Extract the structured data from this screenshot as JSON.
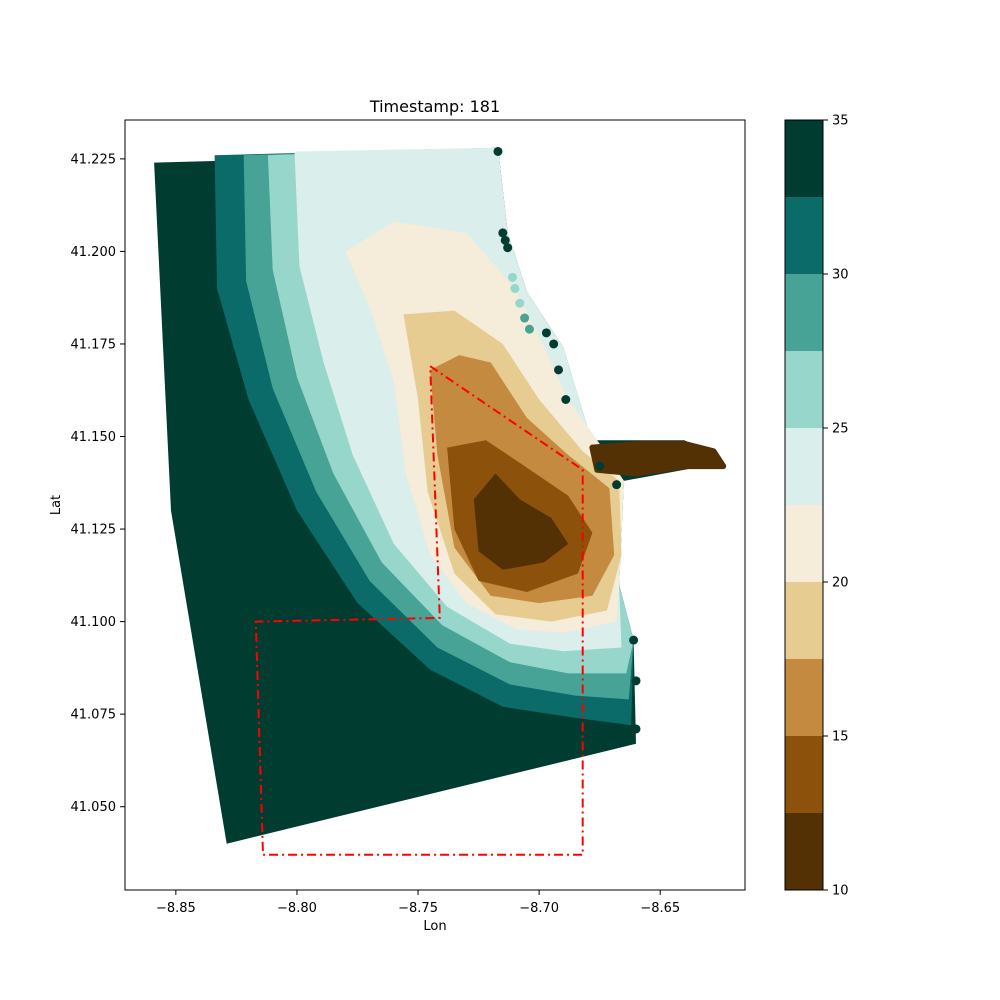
{
  "chart_data": {
    "type": "scatter",
    "title": "Timestamp: 181",
    "xlabel": "Lon",
    "ylabel": "Lat",
    "xlim": [
      -8.871,
      -8.615
    ],
    "ylim": [
      41.0275,
      41.2355
    ],
    "x_ticks": [
      -8.85,
      -8.8,
      -8.75,
      -8.7,
      -8.65
    ],
    "x_tick_labels": [
      "−8.85",
      "−8.80",
      "−8.75",
      "−8.70",
      "−8.65"
    ],
    "y_ticks": [
      41.05,
      41.075,
      41.1,
      41.125,
      41.15,
      41.175,
      41.2,
      41.225
    ],
    "y_tick_labels": [
      "41.050",
      "41.075",
      "41.100",
      "41.125",
      "41.150",
      "41.175",
      "41.200",
      "41.225"
    ],
    "grid": false,
    "colorbar": {
      "min": 10,
      "max": 35,
      "ticks": [
        10,
        15,
        20,
        25,
        30,
        35
      ],
      "tick_labels": [
        "10",
        "15",
        "20",
        "25",
        "30",
        "35"
      ],
      "levels": [
        10,
        12.5,
        15,
        17.5,
        20,
        22.5,
        25,
        27.5,
        30,
        32.5,
        35
      ],
      "colors": [
        "#543005",
        "#8c510a",
        "#c48a3f",
        "#e6cc90",
        "#f5ecda",
        "#daeeeb",
        "#97d6ca",
        "#46a396",
        "#0a6b68",
        "#003c30"
      ]
    },
    "domain_outline": [
      [
        -8.859,
        41.224
      ],
      [
        -8.747,
        41.226
      ],
      [
        -8.717,
        41.228
      ],
      [
        -8.713,
        41.205
      ],
      [
        -8.705,
        41.189
      ],
      [
        -8.69,
        41.174
      ],
      [
        -8.685,
        41.16
      ],
      [
        -8.678,
        41.149
      ],
      [
        -8.64,
        41.149
      ],
      [
        -8.624,
        41.143
      ],
      [
        -8.64,
        41.141
      ],
      [
        -8.665,
        41.138
      ],
      [
        -8.667,
        41.11
      ],
      [
        -8.661,
        41.095
      ],
      [
        -8.66,
        41.067
      ],
      [
        -8.829,
        41.04
      ],
      [
        -8.852,
        41.13
      ]
    ],
    "river_plume": {
      "value": 10,
      "path": [
        [
          -8.678,
          41.147
        ],
        [
          -8.658,
          41.148
        ],
        [
          -8.64,
          41.148
        ],
        [
          -8.628,
          41.146
        ],
        [
          -8.624,
          41.142
        ],
        [
          -8.64,
          41.142
        ],
        [
          -8.66,
          41.14
        ],
        [
          -8.676,
          41.141
        ]
      ]
    },
    "contour_bands": [
      {
        "min": 27.5,
        "max": 35,
        "color": "#0a6b68",
        "outline": [
          [
            -8.834,
            41.226
          ],
          [
            -8.833,
            41.19
          ],
          [
            -8.82,
            41.16
          ],
          [
            -8.8,
            41.13
          ],
          [
            -8.775,
            41.105
          ],
          [
            -8.745,
            41.087
          ],
          [
            -8.715,
            41.077
          ],
          [
            -8.685,
            41.074
          ],
          [
            -8.662,
            41.072
          ],
          [
            -8.661,
            41.095
          ],
          [
            -8.667,
            41.11
          ],
          [
            -8.665,
            41.138
          ],
          [
            -8.678,
            41.148
          ],
          [
            -8.69,
            41.174
          ],
          [
            -8.705,
            41.189
          ],
          [
            -8.713,
            41.205
          ],
          [
            -8.717,
            41.228
          ]
        ]
      },
      {
        "min": 27.5,
        "max": 30,
        "color": "#46a396",
        "outline": [
          [
            -8.822,
            41.226
          ],
          [
            -8.821,
            41.192
          ],
          [
            -8.81,
            41.163
          ],
          [
            -8.792,
            41.135
          ],
          [
            -8.77,
            41.111
          ],
          [
            -8.742,
            41.093
          ],
          [
            -8.712,
            41.083
          ],
          [
            -8.685,
            41.08
          ],
          [
            -8.663,
            41.079
          ],
          [
            -8.661,
            41.095
          ],
          [
            -8.667,
            41.11
          ],
          [
            -8.665,
            41.138
          ],
          [
            -8.678,
            41.148
          ],
          [
            -8.69,
            41.174
          ],
          [
            -8.705,
            41.189
          ],
          [
            -8.713,
            41.205
          ],
          [
            -8.717,
            41.228
          ]
        ]
      },
      {
        "min": 25,
        "max": 27.5,
        "color": "#97d6ca",
        "outline": [
          [
            -8.812,
            41.226
          ],
          [
            -8.81,
            41.195
          ],
          [
            -8.8,
            41.166
          ],
          [
            -8.785,
            41.14
          ],
          [
            -8.765,
            41.116
          ],
          [
            -8.74,
            41.099
          ],
          [
            -8.712,
            41.089
          ],
          [
            -8.688,
            41.086
          ],
          [
            -8.664,
            41.086
          ],
          [
            -8.661,
            41.095
          ],
          [
            -8.667,
            41.11
          ],
          [
            -8.665,
            41.138
          ],
          [
            -8.678,
            41.148
          ],
          [
            -8.69,
            41.174
          ],
          [
            -8.705,
            41.189
          ],
          [
            -8.713,
            41.205
          ],
          [
            -8.717,
            41.228
          ]
        ]
      },
      {
        "min": 22.5,
        "max": 25,
        "color": "#daeeeb",
        "outline": [
          [
            -8.801,
            41.227
          ],
          [
            -8.799,
            41.196
          ],
          [
            -8.789,
            41.17
          ],
          [
            -8.777,
            41.145
          ],
          [
            -8.76,
            41.121
          ],
          [
            -8.738,
            41.104
          ],
          [
            -8.712,
            41.094
          ],
          [
            -8.69,
            41.092
          ],
          [
            -8.666,
            41.093
          ],
          [
            -8.667,
            41.11
          ],
          [
            -8.665,
            41.138
          ],
          [
            -8.678,
            41.148
          ],
          [
            -8.69,
            41.174
          ],
          [
            -8.705,
            41.189
          ],
          [
            -8.713,
            41.205
          ],
          [
            -8.717,
            41.228
          ]
        ]
      },
      {
        "min": 20,
        "max": 22.5,
        "color": "#f5ecda",
        "outline": [
          [
            -8.78,
            41.2
          ],
          [
            -8.77,
            41.185
          ],
          [
            -8.76,
            41.165
          ],
          [
            -8.755,
            41.14
          ],
          [
            -8.745,
            41.118
          ],
          [
            -8.73,
            41.105
          ],
          [
            -8.71,
            41.098
          ],
          [
            -8.69,
            41.097
          ],
          [
            -8.668,
            41.1
          ],
          [
            -8.667,
            41.11
          ],
          [
            -8.665,
            41.138
          ],
          [
            -8.675,
            41.148
          ],
          [
            -8.688,
            41.16
          ],
          [
            -8.7,
            41.177
          ],
          [
            -8.71,
            41.19
          ],
          [
            -8.73,
            41.205
          ],
          [
            -8.76,
            41.208
          ]
        ]
      },
      {
        "min": 17.5,
        "max": 20,
        "color": "#e6cc90",
        "outline": [
          [
            -8.756,
            41.183
          ],
          [
            -8.75,
            41.16
          ],
          [
            -8.746,
            41.135
          ],
          [
            -8.735,
            41.113
          ],
          [
            -8.718,
            41.102
          ],
          [
            -8.695,
            41.1
          ],
          [
            -8.672,
            41.103
          ],
          [
            -8.666,
            41.118
          ],
          [
            -8.667,
            41.138
          ],
          [
            -8.682,
            41.146
          ],
          [
            -8.7,
            41.16
          ],
          [
            -8.715,
            41.175
          ],
          [
            -8.735,
            41.184
          ]
        ]
      },
      {
        "min": 15,
        "max": 17.5,
        "color": "#c48a3f",
        "outline": [
          [
            -8.745,
            41.168
          ],
          [
            -8.742,
            41.145
          ],
          [
            -8.735,
            41.12
          ],
          [
            -8.72,
            41.107
          ],
          [
            -8.7,
            41.105
          ],
          [
            -8.678,
            41.107
          ],
          [
            -8.669,
            41.118
          ],
          [
            -8.671,
            41.136
          ],
          [
            -8.688,
            41.145
          ],
          [
            -8.705,
            41.155
          ],
          [
            -8.72,
            41.17
          ],
          [
            -8.733,
            41.172
          ]
        ]
      },
      {
        "min": 12.5,
        "max": 15,
        "color": "#8c510a",
        "outline": [
          [
            -8.738,
            41.147
          ],
          [
            -8.735,
            41.125
          ],
          [
            -8.725,
            41.111
          ],
          [
            -8.705,
            41.108
          ],
          [
            -8.684,
            41.113
          ],
          [
            -8.678,
            41.124
          ],
          [
            -8.688,
            41.134
          ],
          [
            -8.706,
            41.142
          ],
          [
            -8.722,
            41.149
          ]
        ]
      },
      {
        "min": 10,
        "max": 12.5,
        "color": "#543005",
        "outline": [
          [
            -8.727,
            41.133
          ],
          [
            -8.725,
            41.119
          ],
          [
            -8.715,
            41.114
          ],
          [
            -8.698,
            41.116
          ],
          [
            -8.688,
            41.121
          ],
          [
            -8.695,
            41.128
          ],
          [
            -8.708,
            41.133
          ],
          [
            -8.718,
            41.14
          ]
        ]
      }
    ],
    "coastal_points": [
      {
        "lon": -8.717,
        "lat": 41.227,
        "value": 35
      },
      {
        "lon": -8.715,
        "lat": 41.205,
        "value": 35
      },
      {
        "lon": -8.714,
        "lat": 41.203,
        "value": 35
      },
      {
        "lon": -8.713,
        "lat": 41.201,
        "value": 35
      },
      {
        "lon": -8.711,
        "lat": 41.193,
        "value": 26
      },
      {
        "lon": -8.71,
        "lat": 41.19,
        "value": 26
      },
      {
        "lon": -8.708,
        "lat": 41.186,
        "value": 26
      },
      {
        "lon": -8.706,
        "lat": 41.182,
        "value": 28
      },
      {
        "lon": -8.704,
        "lat": 41.179,
        "value": 28
      },
      {
        "lon": -8.697,
        "lat": 41.178,
        "value": 35
      },
      {
        "lon": -8.694,
        "lat": 41.175,
        "value": 33
      },
      {
        "lon": -8.692,
        "lat": 41.168,
        "value": 35
      },
      {
        "lon": -8.689,
        "lat": 41.16,
        "value": 35
      },
      {
        "lon": -8.675,
        "lat": 41.142,
        "value": 33
      },
      {
        "lon": -8.668,
        "lat": 41.137,
        "value": 35
      },
      {
        "lon": -8.661,
        "lat": 41.095,
        "value": 33
      },
      {
        "lon": -8.66,
        "lat": 41.084,
        "value": 34
      },
      {
        "lon": -8.66,
        "lat": 41.071,
        "value": 35
      }
    ],
    "region_boxes": [
      {
        "path": [
          [
            -8.745,
            41.169
          ],
          [
            -8.682,
            41.141
          ],
          [
            -8.682,
            41.037
          ],
          [
            -8.814,
            41.037
          ],
          [
            -8.817,
            41.1
          ],
          [
            -8.741,
            41.101
          ],
          [
            -8.745,
            41.169
          ]
        ]
      }
    ],
    "box_color": "#ff0000"
  }
}
